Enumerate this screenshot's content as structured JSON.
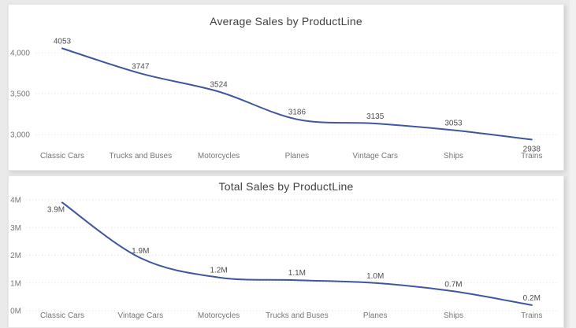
{
  "page": {
    "background_color": "#eaeaea",
    "card_background_color": "#ffffff",
    "line_color": "#3f569e",
    "gridline_color": "#dedede",
    "tick_text_color": "#767676",
    "data_label_color": "#4e4e4e",
    "title_text_color": "#414141"
  },
  "chart_data": [
    {
      "type": "line",
      "title": "Average Sales by ProductLine",
      "categories": [
        "Classic Cars",
        "Trucks and Buses",
        "Motorcycles",
        "Planes",
        "Vintage Cars",
        "Ships",
        "Trains"
      ],
      "values": [
        4053,
        3747,
        3524,
        3186,
        3135,
        3053,
        2938
      ],
      "data_labels": [
        "4053",
        "3747",
        "3524",
        "3186",
        "3135",
        "3053",
        "2938"
      ],
      "label_positions": [
        "above",
        "above",
        "above",
        "above",
        "above",
        "above",
        "below"
      ],
      "y_ticks": [
        {
          "label": "3,000",
          "value": 3000
        },
        {
          "label": "3,500",
          "value": 3500
        },
        {
          "label": "4,000",
          "value": 4000
        }
      ],
      "ylim": [
        2880,
        4160
      ],
      "grid": "dotted-horizontal",
      "legend": "none",
      "line_color": "#3f569e"
    },
    {
      "type": "line",
      "title": "Total Sales by ProductLine",
      "categories": [
        "Classic Cars",
        "Vintage Cars",
        "Motorcycles",
        "Trucks and Buses",
        "Planes",
        "Ships",
        "Trains"
      ],
      "values": [
        3.9,
        1.9,
        1.2,
        1.1,
        1.0,
        0.7,
        0.2
      ],
      "unit": "M",
      "data_labels": [
        "3.9M",
        "1.9M",
        "1.2M",
        "1.1M",
        "1.0M",
        "0.7M",
        "0.2M"
      ],
      "label_positions": [
        "below-left",
        "above",
        "above",
        "above",
        "above",
        "above",
        "above"
      ],
      "y_ticks": [
        {
          "label": "0M",
          "value": 0
        },
        {
          "label": "1M",
          "value": 1
        },
        {
          "label": "2M",
          "value": 2
        },
        {
          "label": "3M",
          "value": 3
        },
        {
          "label": "4M",
          "value": 4
        }
      ],
      "ylim": [
        0,
        4.2
      ],
      "grid": "dotted-horizontal",
      "legend": "none",
      "line_color": "#3f569e"
    }
  ]
}
